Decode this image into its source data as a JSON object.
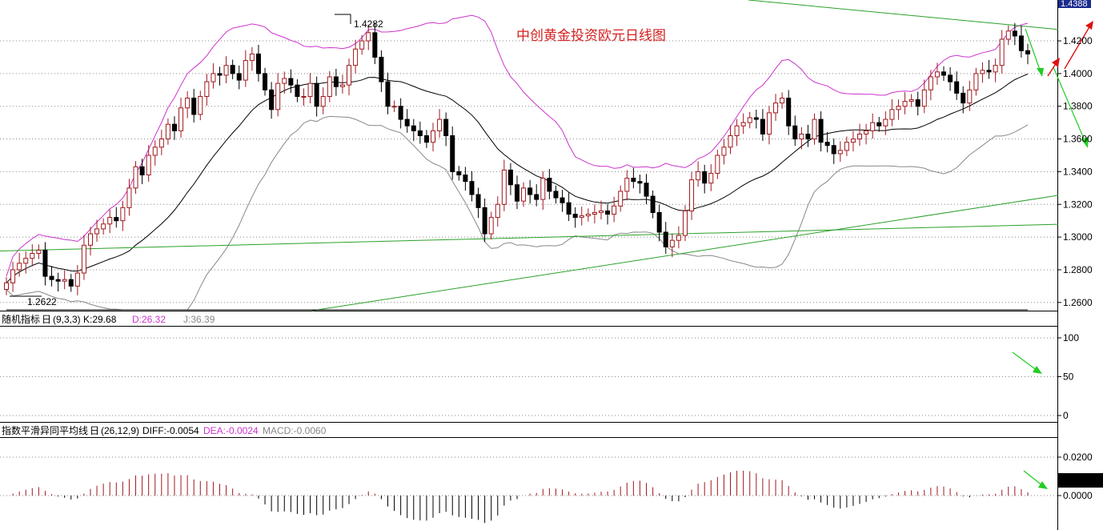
{
  "chart_title": "中创黄金投资欧元日线图",
  "price_panel": {
    "y_ticks": [
      "1.4200",
      "1.4000",
      "1.3800",
      "1.3600",
      "1.3400",
      "1.3200",
      "1.3000",
      "1.2800",
      "1.2600"
    ],
    "current_price_label": "1.4388",
    "high_label": "1.4282",
    "low_label": "1.2622"
  },
  "kdj_panel": {
    "name": "随机指标",
    "period_icon": "日",
    "params": "(9,3,3)",
    "k_label": "K:29.68",
    "d_label": "D:26.32",
    "j_label": "J:36.39",
    "y_ticks": [
      "100",
      "50",
      "0"
    ]
  },
  "macd_panel": {
    "name": "指数平滑异同平均线",
    "period_icon": "日",
    "params": "(26,12,9)",
    "diff_label": "DIFF:-0.0054",
    "dea_label": "DEA:-0.0024",
    "macd_label": "MACD:-0.0060",
    "y_ticks": [
      "0.0200",
      "0.0000"
    ]
  },
  "colors": {
    "up": "#a0181e",
    "down": "#000000",
    "boll_upper": "#cc33cc",
    "boll_lower": "#888888",
    "ma": "#000000",
    "trend": "#2aa02a",
    "arrow_green": "#22cc22",
    "arrow_red": "#dd1111",
    "k_line": "#000000",
    "d_line": "#cc33cc",
    "j_line": "#888888"
  },
  "chart_data": {
    "type": "candlestick",
    "title": "中创黄金投资欧元日线图",
    "y_range": [
      1.255,
      1.445
    ],
    "y_ticks": [
      1.26,
      1.28,
      1.3,
      1.32,
      1.34,
      1.36,
      1.38,
      1.4,
      1.42
    ],
    "close": [
      1.272,
      1.28,
      1.284,
      1.287,
      1.29,
      1.292,
      1.276,
      1.274,
      1.273,
      1.274,
      1.27,
      1.278,
      1.295,
      1.302,
      1.305,
      1.308,
      1.312,
      1.31,
      1.318,
      1.33,
      1.343,
      1.338,
      1.35,
      1.355,
      1.36,
      1.369,
      1.365,
      1.379,
      1.385,
      1.375,
      1.386,
      1.395,
      1.4,
      1.399,
      1.405,
      1.4,
      1.396,
      1.408,
      1.412,
      1.4,
      1.39,
      1.378,
      1.394,
      1.397,
      1.393,
      1.386,
      1.386,
      1.394,
      1.38,
      1.386,
      1.398,
      1.392,
      1.393,
      1.405,
      1.415,
      1.42,
      1.425,
      1.41,
      1.395,
      1.38,
      1.38,
      1.372,
      1.368,
      1.365,
      1.362,
      1.358,
      1.365,
      1.372,
      1.362,
      1.34,
      1.338,
      1.334,
      1.326,
      1.318,
      1.302,
      1.312,
      1.32,
      1.341,
      1.332,
      1.322,
      1.33,
      1.326,
      1.323,
      1.336,
      1.328,
      1.324,
      1.321,
      1.314,
      1.312,
      1.313,
      1.314,
      1.315,
      1.316,
      1.314,
      1.319,
      1.328,
      1.336,
      1.334,
      1.333,
      1.325,
      1.315,
      1.303,
      1.294,
      1.298,
      1.301,
      1.316,
      1.335,
      1.34,
      1.333,
      1.339,
      1.35,
      1.355,
      1.362,
      1.368,
      1.37,
      1.373,
      1.372,
      1.363,
      1.376,
      1.382,
      1.385,
      1.368,
      1.36,
      1.363,
      1.36,
      1.372,
      1.358,
      1.356,
      1.351,
      1.353,
      1.358,
      1.36,
      1.363,
      1.365,
      1.37,
      1.368,
      1.372,
      1.378,
      1.38,
      1.383,
      1.384,
      1.38,
      1.39,
      1.398,
      1.401,
      1.399,
      1.395,
      1.388,
      1.382,
      1.39,
      1.4,
      1.402,
      1.401,
      1.405,
      1.421,
      1.426,
      1.423,
      1.414,
      1.412
    ]
  }
}
